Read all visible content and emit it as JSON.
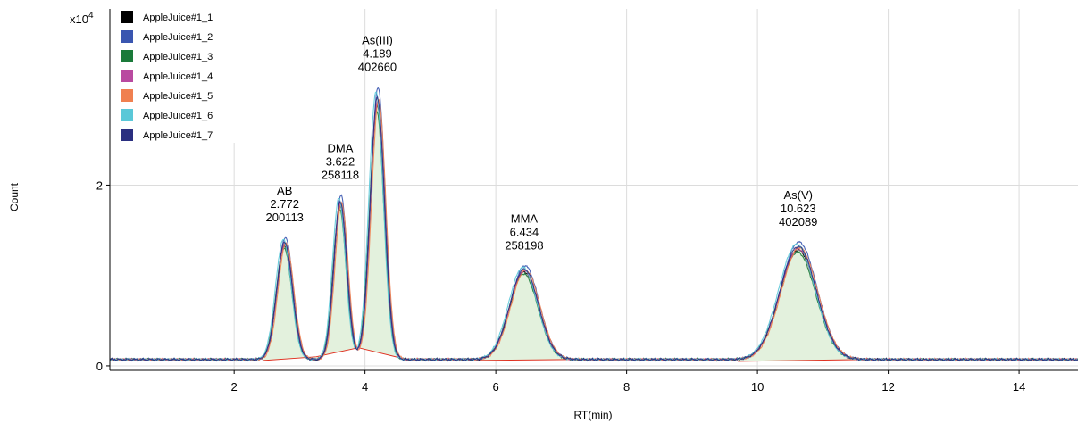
{
  "chart_data": {
    "type": "line",
    "xlabel": "RT(min)",
    "ylabel": "Count",
    "y_multiplier": "x10",
    "y_multiplier_exp": "4",
    "xlim": [
      0.1,
      14.9
    ],
    "ylim": [
      -0.05,
      3.95
    ],
    "x_ticks": [
      {
        "value": 2,
        "label": "2"
      },
      {
        "value": 4,
        "label": "4"
      },
      {
        "value": 6,
        "label": "6"
      },
      {
        "value": 8,
        "label": "8"
      },
      {
        "value": 10,
        "label": "10"
      },
      {
        "value": 12,
        "label": "12"
      },
      {
        "value": 14,
        "label": "14"
      }
    ],
    "y_ticks": [
      {
        "value": 0,
        "label": "0"
      },
      {
        "value": 2,
        "label": "2"
      }
    ],
    "grid": true,
    "legend_position": "top-left",
    "baseline_level": 0.07,
    "series": [
      {
        "name": "AppleJuice#1_1",
        "color": "#000000",
        "scale": 0.97,
        "shift": 0.0
      },
      {
        "name": "AppleJuice#1_2",
        "color": "#3a56b0",
        "scale": 1.04,
        "shift": 0.01
      },
      {
        "name": "AppleJuice#1_3",
        "color": "#1a7a3a",
        "scale": 0.95,
        "shift": -0.01
      },
      {
        "name": "AppleJuice#1_4",
        "color": "#b94aa0",
        "scale": 0.98,
        "shift": 0.0
      },
      {
        "name": "AppleJuice#1_5",
        "color": "#f08050",
        "scale": 0.99,
        "shift": 0.02
      },
      {
        "name": "AppleJuice#1_6",
        "color": "#5ac8d8",
        "scale": 1.02,
        "shift": -0.02
      },
      {
        "name": "AppleJuice#1_7",
        "color": "#2a2f80",
        "scale": 1.0,
        "shift": 0.0
      }
    ],
    "peaks": [
      {
        "name": "AB",
        "rt": 2.772,
        "rt_label": "2.772",
        "area_label": "200113",
        "height": 1.3,
        "sigma": 0.12,
        "baseline": [
          [
            2.45,
            0.06
          ],
          [
            3.25,
            0.1
          ]
        ]
      },
      {
        "name": "DMA",
        "rt": 3.622,
        "rt_label": "3.622",
        "area_label": "258118",
        "height": 1.75,
        "sigma": 0.1,
        "baseline": [
          [
            3.25,
            0.1
          ],
          [
            3.9,
            0.2
          ]
        ]
      },
      {
        "name": "As(III)",
        "rt": 4.189,
        "rt_label": "4.189",
        "area_label": "402660",
        "height": 2.9,
        "sigma": 0.11,
        "baseline": [
          [
            3.9,
            0.2
          ],
          [
            4.7,
            0.06
          ]
        ]
      },
      {
        "name": "MMA",
        "rt": 6.434,
        "rt_label": "6.434",
        "area_label": "258198",
        "height": 1.0,
        "sigma": 0.22,
        "baseline": [
          [
            5.7,
            0.06
          ],
          [
            7.2,
            0.07
          ]
        ]
      },
      {
        "name": "As(V)",
        "rt": 10.623,
        "rt_label": "10.623",
        "area_label": "402089",
        "height": 1.25,
        "sigma": 0.28,
        "baseline": [
          [
            9.7,
            0.05
          ],
          [
            11.6,
            0.07
          ]
        ]
      }
    ],
    "fill_color": "#e3f1dd",
    "baseline_color": "#e03020"
  }
}
